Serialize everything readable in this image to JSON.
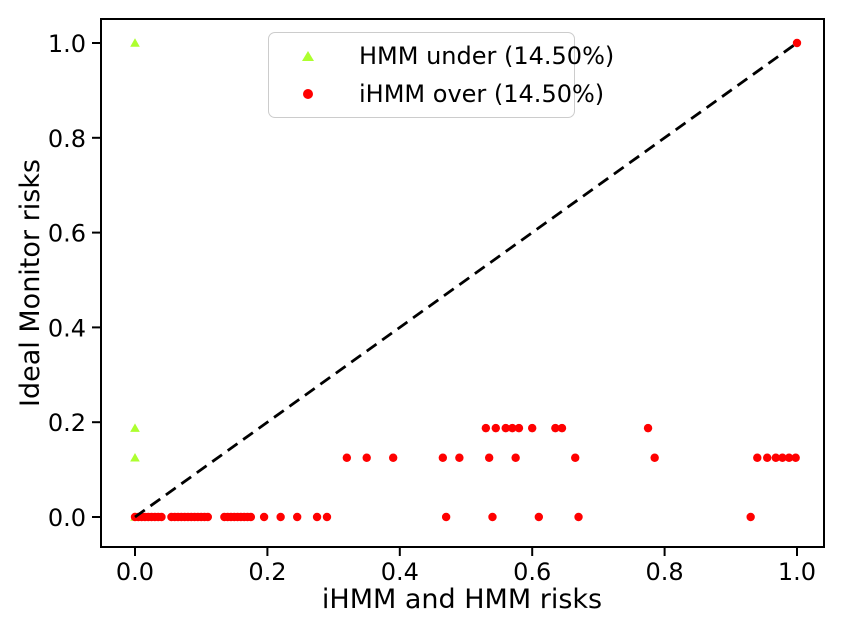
{
  "figure": {
    "background_color": "#ffffff",
    "text_color": "#000000"
  },
  "chart_data": {
    "type": "scatter",
    "title": "",
    "xlabel": "iHMM and HMM risks",
    "ylabel": "Ideal Monitor risks",
    "xlim": [
      -0.051,
      1.041
    ],
    "ylim": [
      -0.063,
      1.051
    ],
    "xticks": [
      0.0,
      0.2,
      0.4,
      0.6,
      0.8,
      1.0
    ],
    "yticks": [
      0.0,
      0.2,
      0.4,
      0.6,
      0.8,
      1.0
    ],
    "xtick_labels": [
      "0.0",
      "0.2",
      "0.4",
      "0.6",
      "0.8",
      "1.0"
    ],
    "ytick_labels": [
      "0.0",
      "0.2",
      "0.4",
      "0.6",
      "0.8",
      "1.0"
    ],
    "grid": false,
    "legend_position": "upper center",
    "reference_line": {
      "style": "dashed",
      "color": "#000000",
      "from": [
        0.0,
        0.0
      ],
      "to": [
        1.0,
        1.0
      ]
    },
    "series": [
      {
        "name": "HMM under (14.50%)",
        "marker": "triangle-up",
        "color": "#adff2f",
        "points": [
          [
            0.0,
            1.0
          ],
          [
            0.0,
            0.1875
          ],
          [
            0.0,
            0.125
          ],
          [
            0.0,
            0.0
          ]
        ]
      },
      {
        "name": "iHMM over (14.50%)",
        "marker": "circle",
        "color": "#ff0000",
        "points": [
          [
            0.0,
            0.0
          ],
          [
            0.005,
            0.0
          ],
          [
            0.01,
            0.0
          ],
          [
            0.015,
            0.0
          ],
          [
            0.02,
            0.0
          ],
          [
            0.025,
            0.0
          ],
          [
            0.03,
            0.0
          ],
          [
            0.035,
            0.0
          ],
          [
            0.04,
            0.0
          ],
          [
            0.055,
            0.0
          ],
          [
            0.06,
            0.0
          ],
          [
            0.065,
            0.0
          ],
          [
            0.07,
            0.0
          ],
          [
            0.075,
            0.0
          ],
          [
            0.08,
            0.0
          ],
          [
            0.085,
            0.0
          ],
          [
            0.09,
            0.0
          ],
          [
            0.095,
            0.0
          ],
          [
            0.1,
            0.0
          ],
          [
            0.105,
            0.0
          ],
          [
            0.11,
            0.0
          ],
          [
            0.135,
            0.0
          ],
          [
            0.14,
            0.0
          ],
          [
            0.145,
            0.0
          ],
          [
            0.15,
            0.0
          ],
          [
            0.155,
            0.0
          ],
          [
            0.16,
            0.0
          ],
          [
            0.165,
            0.0
          ],
          [
            0.17,
            0.0
          ],
          [
            0.175,
            0.0
          ],
          [
            0.195,
            0.0
          ],
          [
            0.22,
            0.0
          ],
          [
            0.245,
            0.0
          ],
          [
            0.275,
            0.0
          ],
          [
            0.29,
            0.0
          ],
          [
            0.47,
            0.0
          ],
          [
            0.54,
            0.0
          ],
          [
            0.61,
            0.0
          ],
          [
            0.67,
            0.0
          ],
          [
            0.93,
            0.0
          ],
          [
            0.32,
            0.125
          ],
          [
            0.35,
            0.125
          ],
          [
            0.39,
            0.125
          ],
          [
            0.465,
            0.125
          ],
          [
            0.49,
            0.125
          ],
          [
            0.535,
            0.125
          ],
          [
            0.575,
            0.125
          ],
          [
            0.665,
            0.125
          ],
          [
            0.785,
            0.125
          ],
          [
            0.94,
            0.125
          ],
          [
            0.955,
            0.125
          ],
          [
            0.968,
            0.125
          ],
          [
            0.978,
            0.125
          ],
          [
            0.988,
            0.125
          ],
          [
            0.998,
            0.125
          ],
          [
            0.53,
            0.1875
          ],
          [
            0.545,
            0.1875
          ],
          [
            0.56,
            0.1875
          ],
          [
            0.57,
            0.1875
          ],
          [
            0.58,
            0.1875
          ],
          [
            0.6,
            0.1875
          ],
          [
            0.635,
            0.1875
          ],
          [
            0.645,
            0.1875
          ],
          [
            0.775,
            0.1875
          ],
          [
            1.0,
            1.0
          ]
        ]
      }
    ]
  }
}
